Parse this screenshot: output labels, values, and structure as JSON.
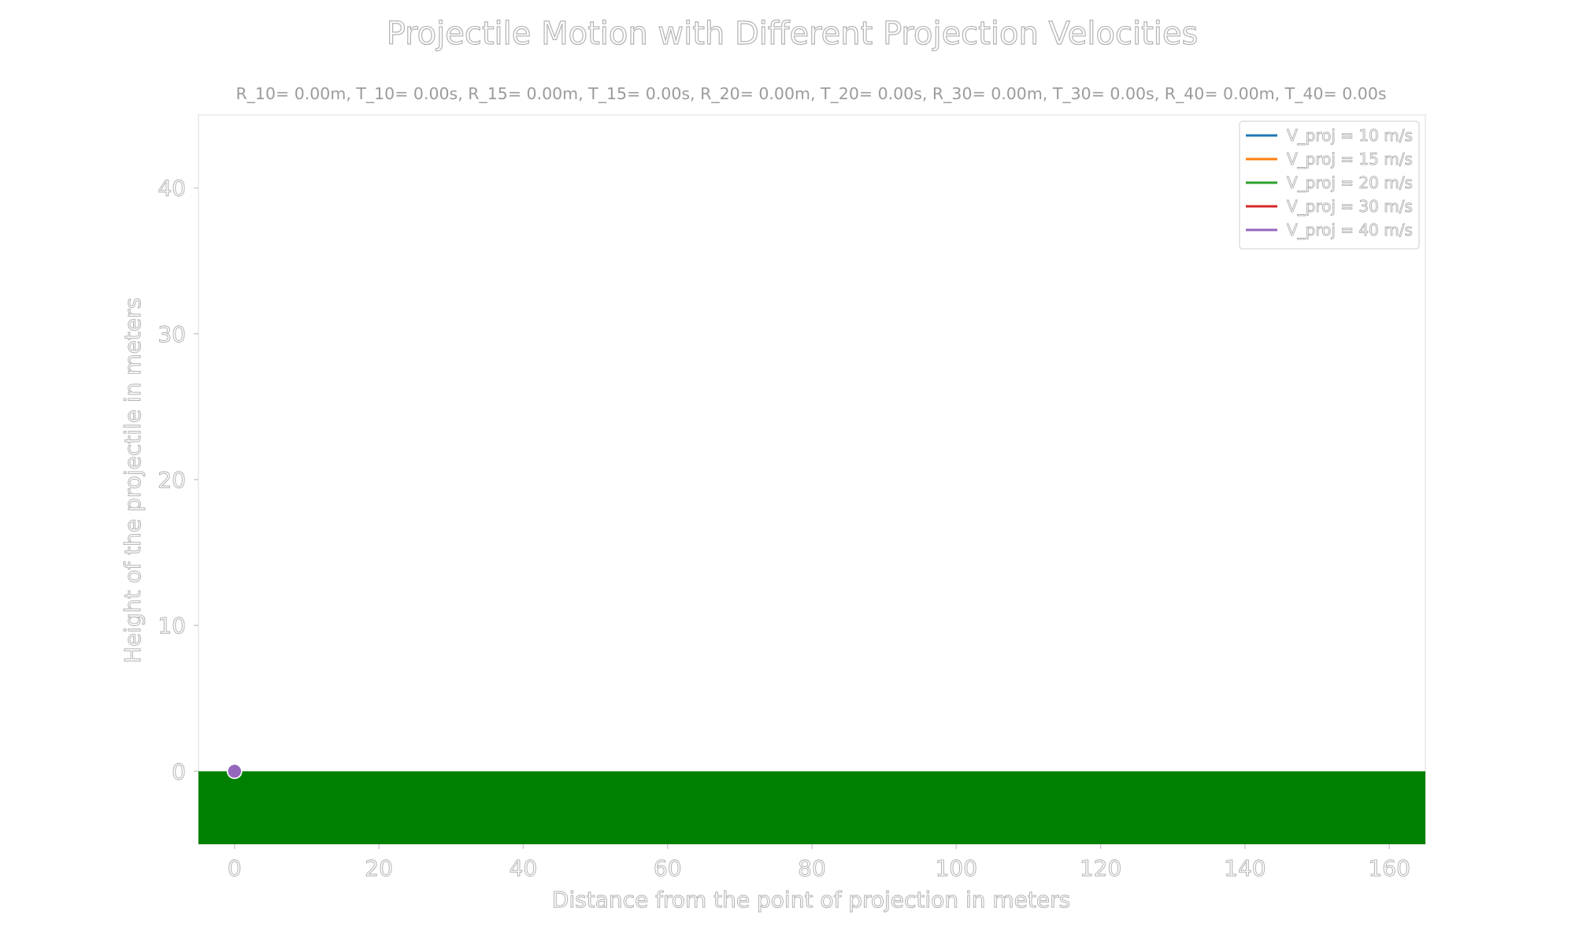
{
  "chart_data": {
    "type": "line",
    "title": "Projectile Motion with Different Projection Velocities",
    "subtitle": "R_10= 0.00m, T_10= 0.00s, R_15= 0.00m, T_15= 0.00s, R_20= 0.00m, T_20= 0.00s, R_30= 0.00m, T_30= 0.00s, R_40= 0.00m, T_40= 0.00s",
    "xlabel": "Distance from the point of projection in meters",
    "ylabel": "Height of the projectile in meters",
    "xlim": [
      -5,
      165
    ],
    "ylim": [
      -5,
      45
    ],
    "xticks": [
      0,
      20,
      40,
      60,
      80,
      100,
      120,
      140,
      160
    ],
    "yticks": [
      0,
      10,
      20,
      30,
      40
    ],
    "grid": false,
    "legend_position": "top-right",
    "ground": {
      "y_top": 0,
      "color": "#008000"
    },
    "series": [
      {
        "name": "V_proj = 10 m/s",
        "color": "#1f77b4",
        "x": [
          0
        ],
        "y": [
          0
        ]
      },
      {
        "name": "V_proj = 15 m/s",
        "color": "#ff7f0e",
        "x": [
          0
        ],
        "y": [
          0
        ]
      },
      {
        "name": "V_proj = 20 m/s",
        "color": "#2ca02c",
        "x": [
          0
        ],
        "y": [
          0
        ]
      },
      {
        "name": "V_proj = 30 m/s",
        "color": "#d62728",
        "x": [
          0
        ],
        "y": [
          0
        ]
      },
      {
        "name": "V_proj = 40 m/s",
        "color": "#9467bd",
        "x": [
          0
        ],
        "y": [
          0
        ]
      }
    ]
  }
}
